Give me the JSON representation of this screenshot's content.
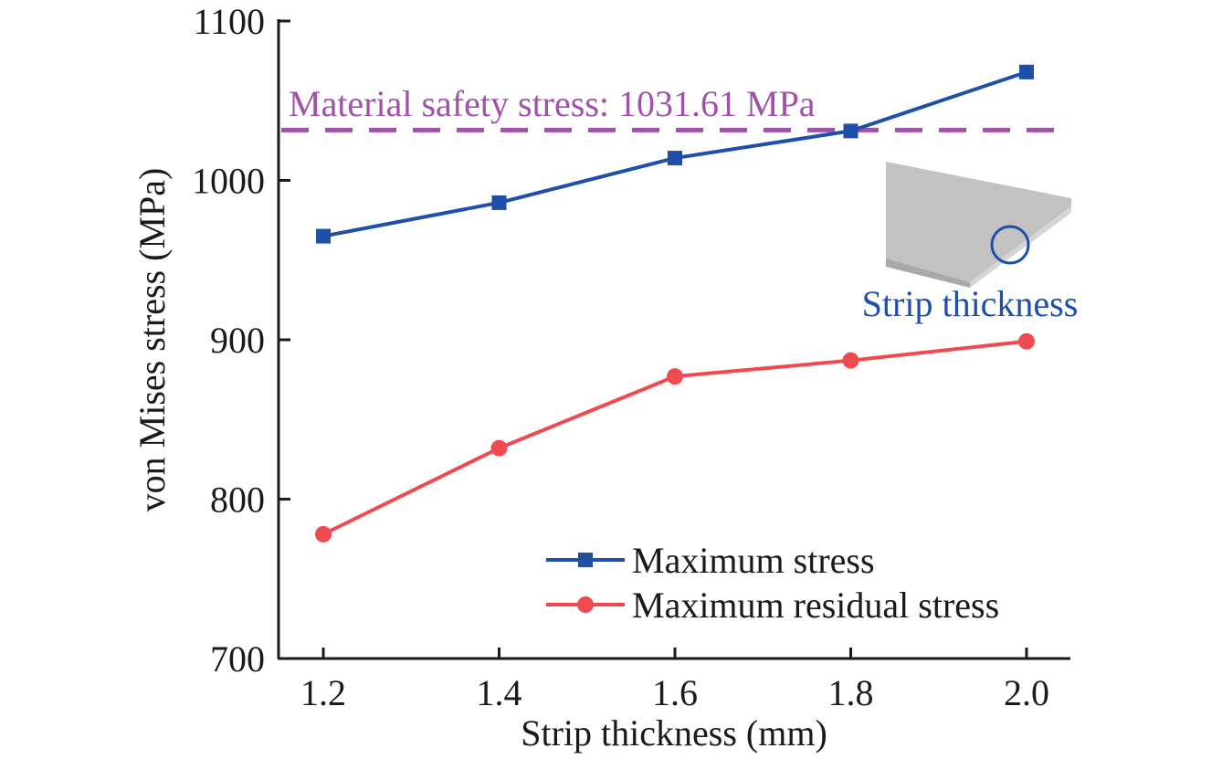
{
  "chart_data": {
    "type": "line",
    "title": "",
    "xlabel": "Strip thickness (mm)",
    "ylabel": "von Mises stress (MPa)",
    "x": [
      1.2,
      1.4,
      1.6,
      1.8,
      2.0
    ],
    "xlim": [
      1.1,
      2.1
    ],
    "ylim": [
      700,
      1100
    ],
    "xticks": [
      1.2,
      1.4,
      1.6,
      1.8,
      2.0
    ],
    "xtick_labels": [
      "1.2",
      "1.4",
      "1.6",
      "1.8",
      "2.0"
    ],
    "yticks": [
      700,
      800,
      900,
      1000,
      1100
    ],
    "ytick_labels": [
      "700",
      "800",
      "900",
      "1000",
      "1100"
    ],
    "grid": false,
    "legend_position": "bottom-center",
    "series": [
      {
        "name": "Maximum stress",
        "marker": "square",
        "color": "#1f4fa8",
        "values": [
          965,
          986,
          1014,
          1031,
          1068
        ]
      },
      {
        "name": "Maximum residual stress",
        "marker": "circle",
        "color": "#ee4a50",
        "values": [
          778,
          832,
          877,
          887,
          899
        ]
      }
    ],
    "reference_line": {
      "label": "Material safety stress: 1031.61 MPa",
      "value": 1031.61,
      "style": "dashed",
      "color": "#a052a8"
    },
    "inset": {
      "label": "Strip thickness",
      "label_color": "#1f4fa8",
      "description": "grey strip plate with circled thickness edge"
    }
  }
}
